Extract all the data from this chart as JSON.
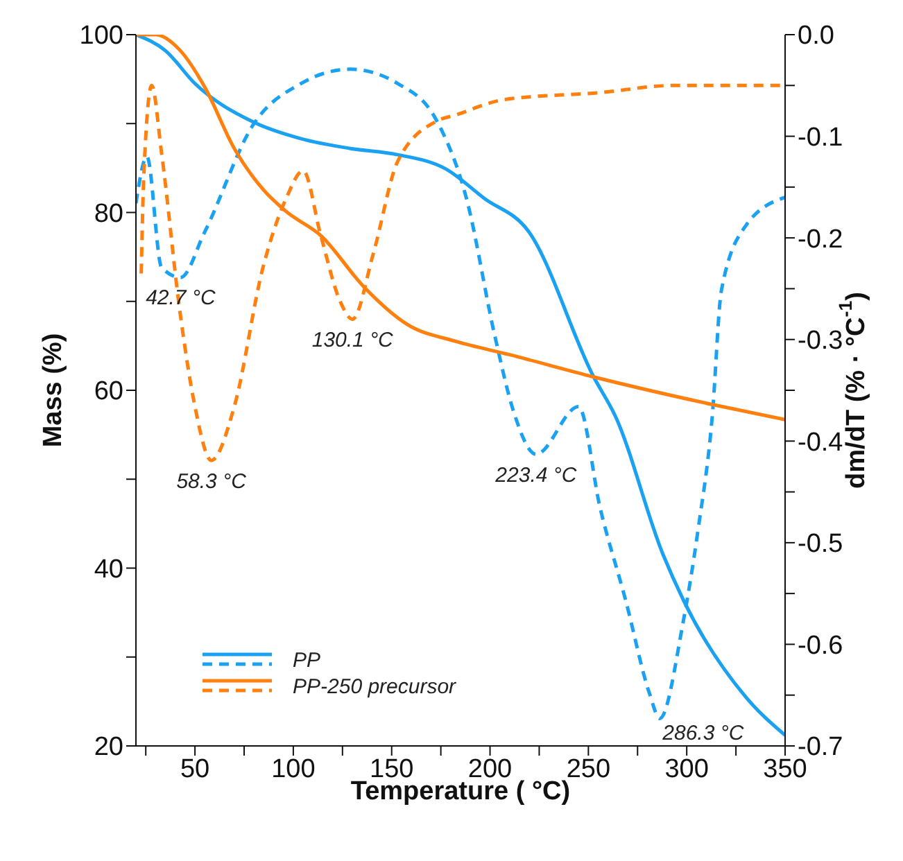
{
  "chart_data": {
    "type": "line",
    "xlabel": "Temperature ( °C)",
    "ylabel": "Mass (%)",
    "y2label": "dm/dT (% · °C$^{-1}$)",
    "xlim": [
      20,
      350
    ],
    "xticks": [
      {
        "value": 25,
        "label": null
      },
      50,
      {
        "value": 75,
        "label": null
      },
      100,
      {
        "value": 125,
        "label": null
      },
      150,
      {
        "value": 175,
        "label": null
      },
      200,
      {
        "value": 225,
        "label": null
      },
      250,
      {
        "value": 275,
        "label": null
      },
      300,
      {
        "value": 325,
        "label": null
      },
      350
    ],
    "ylim": [
      20,
      100
    ],
    "yticks": [
      20,
      {
        "value": 30,
        "label": null
      },
      40,
      {
        "value": 50,
        "label": null
      },
      60,
      {
        "value": 70,
        "label": null
      },
      80,
      {
        "value": 90,
        "label": null
      },
      100
    ],
    "y2lim": [
      -0.7,
      0
    ],
    "y2ticks": [
      -0.7,
      {
        "value": -0.65,
        "label": null
      },
      -0.6,
      {
        "value": -0.55,
        "label": null
      },
      -0.5,
      {
        "value": -0.45,
        "label": null
      },
      -0.4,
      {
        "value": -0.35,
        "label": null
      },
      -0.3,
      {
        "value": -0.25,
        "label": null
      },
      -0.2,
      {
        "value": -0.15,
        "label": null
      },
      -0.1,
      {
        "value": -0.05,
        "label": null
      },
      {
        "value": 0,
        "label": "0.0"
      }
    ],
    "grid": false,
    "legend": "bottom left",
    "marker": "none",
    "series": [
      {
        "name": "PP",
        "color": "#1ba1f2",
        "line_style": "solid",
        "x": [
          20,
          35,
          50,
          79.5,
          104,
          129,
          153,
          177.5,
          197,
          219.5,
          252.7,
          263.7,
          288,
          298.3,
          330,
          350
        ],
        "values": [
          100,
          98.2,
          94.5,
          90.2,
          88.3,
          87.2,
          86.5,
          84.9,
          81.6,
          77.9,
          61.5,
          57.1,
          41.5,
          36.4,
          25.5,
          21.2
        ]
      },
      {
        "color": "#1ba1f2",
        "line_style": "dashed",
        "axis": "y2",
        "x": [
          20,
          25.6,
          33,
          42.7,
          55,
          79.5,
          104,
          129,
          153,
          173,
          188,
          202.5,
          212,
          223.4,
          245,
          256,
          269,
          281,
          286.3,
          298,
          305.7,
          313,
          317.6,
          330,
          350
        ],
        "values": [
          -0.166,
          -0.12,
          -0.229,
          -0.239,
          -0.194,
          -0.089,
          -0.048,
          -0.034,
          -0.048,
          -0.085,
          -0.161,
          -0.297,
          -0.371,
          -0.413,
          -0.366,
          -0.466,
          -0.557,
          -0.648,
          -0.673,
          -0.58,
          -0.488,
          -0.375,
          -0.252,
          -0.188,
          -0.16
        ]
      },
      {
        "name": "PP-250 precursor",
        "color": "#ff7f0f",
        "line_style": "solid",
        "x": [
          20,
          30,
          42.6,
          55,
          70,
          84.6,
          96.4,
          114,
          136,
          158,
          182.6,
          210,
          252.7,
          313,
          350
        ],
        "values": [
          100,
          100,
          98.2,
          94.1,
          87.2,
          82.6,
          80.1,
          77.4,
          71.6,
          67.4,
          65.5,
          64,
          61.5,
          58.4,
          56.7
        ]
      },
      {
        "color": "#ff7f0f",
        "line_style": "dashed",
        "axis": "y2",
        "x": [
          22.7,
          24,
          28,
          33,
          42.6,
          50,
          58.3,
          70,
          84.6,
          96.4,
          105,
          114,
          123.7,
          130.1,
          140.6,
          153,
          173,
          182.6,
          207,
          256,
          293,
          350
        ],
        "values": [
          -0.235,
          -0.139,
          -0.05,
          -0.116,
          -0.276,
          -0.366,
          -0.419,
          -0.366,
          -0.229,
          -0.161,
          -0.134,
          -0.198,
          -0.262,
          -0.28,
          -0.216,
          -0.125,
          -0.085,
          -0.079,
          -0.064,
          -0.057,
          -0.05,
          -0.05
        ]
      }
    ],
    "annotations": [
      {
        "text": "42.7 °C",
        "x": 42.7,
        "y": 72.7
      },
      {
        "text": "58.3 °C",
        "x": 58.3,
        "y": 52.1
      },
      {
        "text": "130.1 °C",
        "x": 130.1,
        "y": 68
      },
      {
        "text": "223.4 °C",
        "x": 223.4,
        "y": 52.8
      },
      {
        "text": "286.3 °C",
        "x": 286.3,
        "y": 23.1
      }
    ]
  }
}
